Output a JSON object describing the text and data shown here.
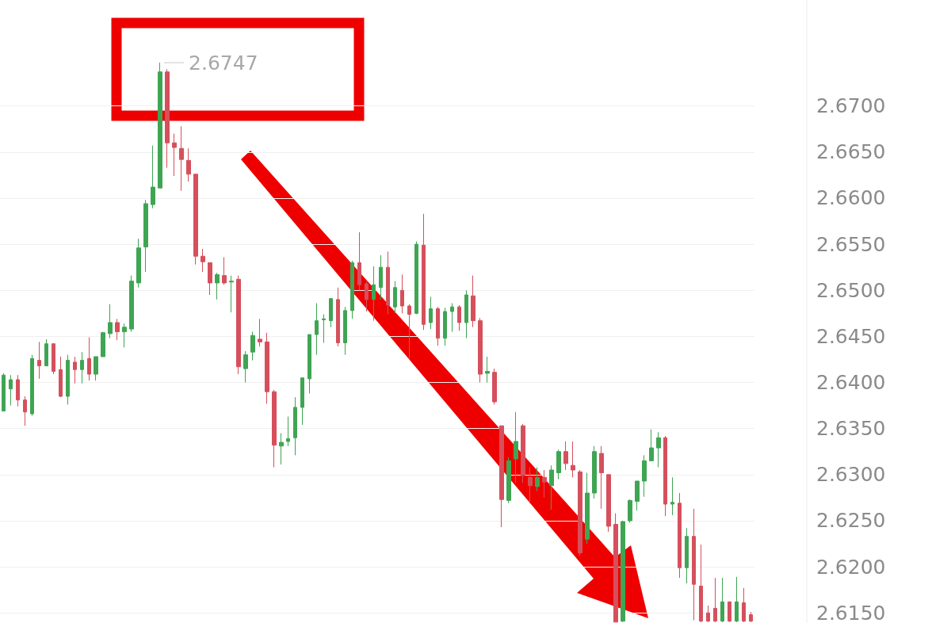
{
  "chart_data": {
    "type": "candlestick",
    "categories": [
      null,
      null,
      null,
      null,
      null,
      null,
      null,
      null,
      null,
      null,
      null,
      null,
      null,
      null,
      null,
      null,
      null,
      null,
      null,
      null,
      null,
      null,
      null,
      null,
      null,
      null,
      null,
      null,
      null,
      null,
      null,
      null,
      null,
      null,
      null,
      null,
      null,
      null,
      null,
      null,
      null,
      null,
      null,
      null,
      null,
      null,
      null,
      null,
      null,
      null,
      null,
      null,
      null,
      null,
      null,
      null,
      null,
      null,
      null,
      null,
      null,
      null,
      null,
      null,
      null,
      null,
      null,
      null,
      null,
      null,
      null,
      null,
      null,
      null,
      null,
      null,
      null,
      null,
      null,
      null,
      null,
      null,
      null,
      null,
      null,
      null,
      null,
      null,
      null,
      null,
      null,
      null,
      null,
      null,
      null,
      null,
      null,
      null,
      null,
      null,
      null,
      null,
      null,
      null,
      null,
      null
    ],
    "ohlc": [
      [
        2.6369,
        2.641,
        2.6369,
        2.6408
      ],
      [
        2.6393,
        2.6408,
        2.6375,
        2.6403
      ],
      [
        2.6403,
        2.6408,
        2.6374,
        2.6381
      ],
      [
        2.6381,
        2.6385,
        2.6353,
        2.6368
      ],
      [
        2.6366,
        2.643,
        2.6364,
        2.6426
      ],
      [
        2.6424,
        2.6444,
        2.6404,
        2.6418
      ],
      [
        2.6418,
        2.6447,
        2.6418,
        2.6442
      ],
      [
        2.6442,
        2.6442,
        2.6409,
        2.6412
      ],
      [
        2.6414,
        2.6428,
        2.6384,
        2.6385
      ],
      [
        2.6385,
        2.643,
        2.6376,
        2.6424
      ],
      [
        2.6422,
        2.6428,
        2.6399,
        2.6414
      ],
      [
        2.6414,
        2.6433,
        2.6399,
        2.6424
      ],
      [
        2.6426,
        2.6449,
        2.6402,
        2.6409
      ],
      [
        2.6409,
        2.6428,
        2.6402,
        2.6428
      ],
      [
        2.6428,
        2.6455,
        2.6428,
        2.6454
      ],
      [
        2.6453,
        2.6485,
        2.6448,
        2.6465
      ],
      [
        2.6465,
        2.6469,
        2.6446,
        2.6455
      ],
      [
        2.6455,
        2.6464,
        2.6438,
        2.646
      ],
      [
        2.6458,
        2.6516,
        2.6455,
        2.651
      ],
      [
        2.6508,
        2.6556,
        2.6503,
        2.6546
      ],
      [
        2.6547,
        2.6598,
        2.652,
        2.6594
      ],
      [
        2.6593,
        2.6657,
        2.6589,
        2.6612
      ],
      [
        2.6611,
        2.6747,
        2.6611,
        2.6737
      ],
      [
        2.6737,
        2.674,
        2.6633,
        2.666
      ],
      [
        2.666,
        2.667,
        2.6624,
        2.6655
      ],
      [
        2.6654,
        2.6678,
        2.6608,
        2.6642
      ],
      [
        2.6641,
        2.6654,
        2.6618,
        2.6626
      ],
      [
        2.6626,
        2.6626,
        2.6528,
        2.6537
      ],
      [
        2.6537,
        2.6545,
        2.652,
        2.6531
      ],
      [
        2.653,
        2.653,
        2.6495,
        2.6508
      ],
      [
        2.6508,
        2.6519,
        2.649,
        2.6517
      ],
      [
        2.6516,
        2.6536,
        2.6506,
        2.6508
      ],
      [
        2.6509,
        2.6516,
        2.6476,
        2.651
      ],
      [
        2.6512,
        2.6516,
        2.6409,
        2.6417
      ],
      [
        2.6415,
        2.6434,
        2.64,
        2.643
      ],
      [
        2.6433,
        2.6455,
        2.6424,
        2.6451
      ],
      [
        2.6447,
        2.6469,
        2.6439,
        2.6444
      ],
      [
        2.6444,
        2.6454,
        2.6377,
        2.639
      ],
      [
        2.639,
        2.6392,
        2.6308,
        2.6332
      ],
      [
        2.6331,
        2.6345,
        2.6311,
        2.6335
      ],
      [
        2.6336,
        2.6363,
        2.6331,
        2.6339
      ],
      [
        2.634,
        2.6384,
        2.6321,
        2.6373
      ],
      [
        2.6373,
        2.6405,
        2.6354,
        2.6405
      ],
      [
        2.6404,
        2.6452,
        2.6388,
        2.6452
      ],
      [
        2.6452,
        2.6486,
        2.643,
        2.6467
      ],
      [
        2.6468,
        2.6474,
        2.6443,
        2.6469
      ],
      [
        2.6467,
        2.6491,
        2.646,
        2.6491
      ],
      [
        2.649,
        2.6503,
        2.6439,
        2.6443
      ],
      [
        2.6443,
        2.6482,
        2.643,
        2.6478
      ],
      [
        2.6478,
        2.6532,
        2.6469,
        2.653
      ],
      [
        2.653,
        2.6563,
        2.65,
        2.6506
      ],
      [
        2.6507,
        2.651,
        2.6477,
        2.649
      ],
      [
        2.649,
        2.6526,
        2.6467,
        2.6506
      ],
      [
        2.6503,
        2.6538,
        2.649,
        2.6525
      ],
      [
        2.6525,
        2.6542,
        2.6474,
        2.6484
      ],
      [
        2.6482,
        2.651,
        2.6475,
        2.6503
      ],
      [
        2.65,
        2.6517,
        2.6475,
        2.6483
      ],
      [
        2.6483,
        2.6485,
        2.6426,
        2.6474
      ],
      [
        2.6475,
        2.6553,
        2.6474,
        2.655
      ],
      [
        2.6549,
        2.6583,
        2.6457,
        2.6463
      ],
      [
        2.6465,
        2.6493,
        2.6458,
        2.648
      ],
      [
        2.648,
        2.6482,
        2.644,
        2.6448
      ],
      [
        2.6448,
        2.6481,
        2.644,
        2.6477
      ],
      [
        2.6477,
        2.6486,
        2.6455,
        2.6482
      ],
      [
        2.6482,
        2.6484,
        2.6456,
        2.6465
      ],
      [
        2.6465,
        2.65,
        2.6448,
        2.6495
      ],
      [
        2.6494,
        2.6516,
        2.646,
        2.6467
      ],
      [
        2.6467,
        2.647,
        2.64,
        2.6409
      ],
      [
        2.641,
        2.6428,
        2.64,
        2.6412
      ],
      [
        2.6411,
        2.6415,
        2.6376,
        2.6379
      ],
      [
        2.6353,
        2.6353,
        2.6243,
        2.6273
      ],
      [
        2.6272,
        2.6319,
        2.6269,
        2.6315
      ],
      [
        2.6317,
        2.6368,
        2.6291,
        2.6336
      ],
      [
        2.6353,
        2.6355,
        2.6291,
        2.6299
      ],
      [
        2.6297,
        2.6308,
        2.6269,
        2.6288
      ],
      [
        2.6287,
        2.6308,
        2.6282,
        2.6297
      ],
      [
        2.6297,
        2.6305,
        2.6275,
        2.6292
      ],
      [
        2.6288,
        2.631,
        2.6262,
        2.6305
      ],
      [
        2.6302,
        2.6327,
        2.6295,
        2.6325
      ],
      [
        2.6325,
        2.6336,
        2.6305,
        2.6312
      ],
      [
        2.631,
        2.6336,
        2.6297,
        2.6305
      ],
      [
        2.6303,
        2.6305,
        2.6212,
        2.6215
      ],
      [
        2.623,
        2.6302,
        2.6225,
        2.628
      ],
      [
        2.628,
        2.6331,
        2.6274,
        2.6325
      ],
      [
        2.6323,
        2.6331,
        2.6263,
        2.6302
      ],
      [
        2.63,
        2.63,
        2.6238,
        2.6244
      ],
      [
        2.6246,
        2.6258,
        2.614,
        2.614
      ],
      [
        2.6141,
        2.625,
        2.614,
        2.6249
      ],
      [
        2.625,
        2.6273,
        2.6248,
        2.6272
      ],
      [
        2.6271,
        2.6293,
        2.6261,
        2.6293
      ],
      [
        2.6293,
        2.6321,
        2.6276,
        2.6315
      ],
      [
        2.6315,
        2.6349,
        2.6315,
        2.6329
      ],
      [
        2.6329,
        2.6346,
        2.6308,
        2.634
      ],
      [
        2.634,
        2.6342,
        2.6255,
        2.6268
      ],
      [
        2.6268,
        2.6297,
        2.6256,
        2.627
      ],
      [
        2.6269,
        2.628,
        2.6188,
        2.6199
      ],
      [
        2.6199,
        2.6242,
        2.6182,
        2.6233
      ],
      [
        2.6233,
        2.6263,
        2.6142,
        2.6181
      ],
      [
        2.6179,
        2.6224,
        2.614,
        2.6141
      ],
      [
        2.615,
        2.6158,
        2.614,
        2.6141
      ],
      [
        2.6155,
        2.6188,
        2.614,
        2.6141
      ],
      [
        2.6141,
        2.6188,
        2.614,
        2.6162
      ],
      [
        2.6162,
        2.6162,
        2.614,
        2.6141
      ],
      [
        2.6141,
        2.6189,
        2.614,
        2.6162
      ],
      [
        2.6161,
        2.6177,
        2.614,
        2.6141
      ],
      [
        2.6148,
        2.6151,
        2.614,
        2.6141
      ]
    ],
    "colors": [
      "#3fa553",
      "#3fa553",
      "#d5505c",
      "#d5505c",
      "#3fa553",
      "#d5505c",
      "#3fa553",
      "#d5505c",
      "#d5505c",
      "#3fa553",
      "#d5505c",
      "#3fa553",
      "#d5505c",
      "#3fa553",
      "#3fa553",
      "#3fa553",
      "#d5505c",
      "#3fa553",
      "#3fa553",
      "#3fa553",
      "#3fa553",
      "#3fa553",
      "#3fa553",
      "#d5505c",
      "#d5505c",
      "#d5505c",
      "#d5505c",
      "#d5505c",
      "#d5505c",
      "#d5505c",
      "#3fa553",
      "#d5505c",
      "#3fa553",
      "#d5505c",
      "#3fa553",
      "#3fa553",
      "#d5505c",
      "#d5505c",
      "#d5505c",
      "#3fa553",
      "#3fa553",
      "#3fa553",
      "#3fa553",
      "#3fa553",
      "#3fa553",
      "#3fa553",
      "#3fa553",
      "#d5505c",
      "#3fa553",
      "#3fa553",
      "#d5505c",
      "#d5505c",
      "#3fa553",
      "#3fa553",
      "#d5505c",
      "#3fa553",
      "#d5505c",
      "#d5505c",
      "#3fa553",
      "#d5505c",
      "#3fa553",
      "#d5505c",
      "#3fa553",
      "#3fa553",
      "#d5505c",
      "#3fa553",
      "#d5505c",
      "#d5505c",
      "#3fa553",
      "#d5505c",
      "#d5505c",
      "#3fa553",
      "#3fa553",
      "#d5505c",
      "#d5505c",
      "#3fa553",
      "#d5505c",
      "#3fa553",
      "#3fa553",
      "#d5505c",
      "#d5505c",
      "#d5505c",
      "#3fa553",
      "#3fa553",
      "#d5505c",
      "#d5505c",
      "#d5505c",
      "#3fa553",
      "#3fa553",
      "#3fa553",
      "#3fa553",
      "#3fa553",
      "#3fa553",
      "#d5505c",
      "#3fa553",
      "#d5505c",
      "#3fa553",
      "#d5505c",
      "#d5505c",
      "#d5505c",
      "#d5505c",
      "#3fa553",
      "#d5505c",
      "#3fa553",
      "#d5505c",
      "#d5505c"
    ],
    "ylim": [
      2.6139,
      2.6815
    ],
    "yticks": [
      {
        "value": 2.615,
        "label": "2.6150"
      },
      {
        "value": 2.62,
        "label": "2.6200"
      },
      {
        "value": 2.625,
        "label": "2.6250"
      },
      {
        "value": 2.63,
        "label": "2.6300"
      },
      {
        "value": 2.635,
        "label": "2.6350"
      },
      {
        "value": 2.64,
        "label": "2.6400"
      },
      {
        "value": 2.645,
        "label": "2.6450"
      },
      {
        "value": 2.65,
        "label": "2.6500"
      },
      {
        "value": 2.655,
        "label": "2.6550"
      },
      {
        "value": 2.66,
        "label": "2.6600"
      },
      {
        "value": 2.665,
        "label": "2.6650"
      },
      {
        "value": 2.67,
        "label": "2.6700"
      }
    ],
    "grid": "y",
    "tick_labels": "y",
    "annotations": [
      "2.6747"
    ]
  }
}
